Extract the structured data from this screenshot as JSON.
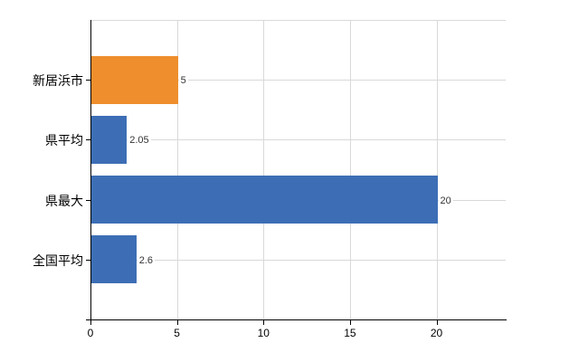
{
  "chart_data": {
    "type": "bar",
    "orientation": "horizontal",
    "title": "",
    "xlabel": "",
    "ylabel": "",
    "categories": [
      "新居浜市",
      "県平均",
      "県最大",
      "全国平均"
    ],
    "values": [
      5,
      2.05,
      20,
      2.6
    ],
    "value_labels": [
      "5",
      "2.05",
      "20",
      "2.6"
    ],
    "bar_colors": [
      "#EF8E2C",
      "#3D6EB5",
      "#3D6EB5",
      "#3D6EB5"
    ],
    "xlim": [
      0,
      24
    ],
    "x_ticks": [
      0,
      5,
      10,
      15,
      20
    ],
    "grid": true,
    "gridline_color": "#D9D9D9",
    "axis_color": "#000000",
    "legend": "none",
    "background_color": "#FFFFFF"
  }
}
